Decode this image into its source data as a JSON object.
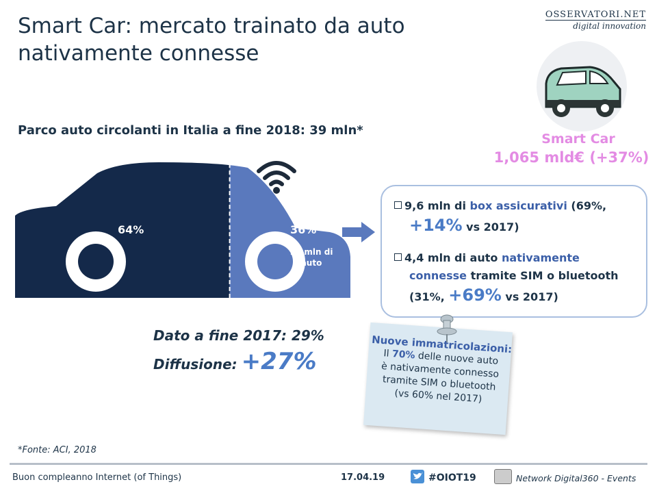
{
  "title": "Smart Car: mercato trainato da auto nativamente connesse",
  "logo": {
    "line1": "OSSERVATORI.NET",
    "line2": "digital innovation"
  },
  "subtitle": "Parco auto circolanti in Italia a fine 2018: 39 mln*",
  "smart_car": {
    "label": "Smart Car",
    "value": "1,065 mld€ (+37%)"
  },
  "car_chart": {
    "segments": [
      {
        "label": "64%",
        "share": 64,
        "color": "#14294a"
      },
      {
        "label": "36%",
        "share": 36,
        "color": "#5a79bd",
        "sublabel": "14 mln di auto"
      }
    ]
  },
  "box": {
    "item1": {
      "a": "9,6 mln di ",
      "b": "box assicurativi",
      "c": " (69%,",
      "d": "+14%",
      "e": " vs 2017)"
    },
    "item2": {
      "a": "4,4 mln di auto ",
      "b": "nativamente",
      "b2": "connesse",
      "c": " tramite SIM o bluetooth",
      "d": "(31%, ",
      "e": "+69%",
      "f": " vs 2017)"
    }
  },
  "note": {
    "title": "Nuove immatricolazioni:",
    "l1a": "Il ",
    "l1b": "70%",
    "l1c": " delle nuove auto",
    "l2": "è nativamente connesso",
    "l3": "tramite SIM o bluetooth",
    "l4": "(vs 60% nel 2017)"
  },
  "dato2017": "Dato a fine 2017: 29%",
  "diffusione": {
    "label": "Diffusione:",
    "value": "+27%"
  },
  "fonte": "*Fonte: ACI, 2018",
  "footer": {
    "left": "Buon compleanno Internet (of Things)",
    "date": "17.04.19",
    "hashtag": "#OIOT19",
    "right": "Network Digital360 - Events"
  },
  "icons": [
    "wifi-icon",
    "arrow-right-icon",
    "push-pin-icon",
    "twitter-icon",
    "calendar-icon",
    "small-car-icon"
  ]
}
